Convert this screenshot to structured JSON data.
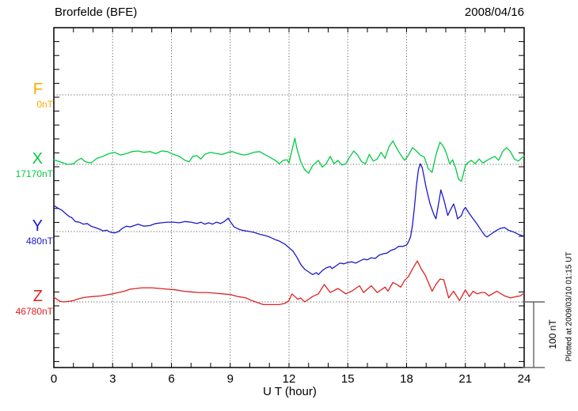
{
  "header": {
    "station": "Brorfelde (BFE)",
    "date": "2008/04/16"
  },
  "footer": {
    "plotted_at": "Plotted at 2009/03/10 01:15 UT"
  },
  "chart_data": {
    "type": "line",
    "title": "Brorfelde (BFE)",
    "date": "2008/04/16",
    "xlabel": "U T (hour)",
    "x_range": [
      0,
      24
    ],
    "x_major_ticks": [
      0,
      3,
      6,
      9,
      12,
      15,
      18,
      21,
      24
    ],
    "x_minor_step_hours": 1,
    "grid": "dotted vertical lines every 3 hours, dotted horizontal line at each component baseline",
    "legend_position": "left margin component labels",
    "scale": {
      "label": "100 nT",
      "nT": 100
    },
    "series": [
      {
        "name": "F",
        "baseline_nT": 0,
        "baseline_label": "0nT",
        "color": "#FFAA00",
        "points": []
      },
      {
        "name": "X",
        "baseline_nT": 17170,
        "baseline_label": "17170nT",
        "color": "#00CC44",
        "points": [
          [
            0,
            7
          ],
          [
            0.3,
            4
          ],
          [
            0.7,
            0
          ],
          [
            1,
            1
          ],
          [
            1.2,
            6
          ],
          [
            1.4,
            9
          ],
          [
            1.6,
            4
          ],
          [
            1.9,
            2
          ],
          [
            2.2,
            9
          ],
          [
            2.5,
            12
          ],
          [
            2.8,
            16
          ],
          [
            3.1,
            18
          ],
          [
            3.4,
            14
          ],
          [
            3.7,
            16
          ],
          [
            4,
            19
          ],
          [
            4.3,
            20
          ],
          [
            4.6,
            18
          ],
          [
            4.9,
            19
          ],
          [
            5.2,
            16
          ],
          [
            5.5,
            20
          ],
          [
            5.8,
            19
          ],
          [
            6.1,
            15
          ],
          [
            6.4,
            12
          ],
          [
            6.7,
            6
          ],
          [
            6.9,
            4
          ],
          [
            7.1,
            12
          ],
          [
            7.3,
            13
          ],
          [
            7.5,
            8
          ],
          [
            7.7,
            15
          ],
          [
            8,
            18
          ],
          [
            8.3,
            16
          ],
          [
            8.6,
            15
          ],
          [
            8.9,
            18
          ],
          [
            9.1,
            19
          ],
          [
            9.4,
            16
          ],
          [
            9.7,
            14
          ],
          [
            9.9,
            15
          ],
          [
            10.2,
            18
          ],
          [
            10.5,
            19
          ],
          [
            10.8,
            14
          ],
          [
            11,
            11
          ],
          [
            11.3,
            6
          ],
          [
            11.5,
            1
          ],
          [
            11.7,
            6
          ],
          [
            11.9,
            7
          ],
          [
            12,
            2
          ],
          [
            12.1,
            15
          ],
          [
            12.2,
            27
          ],
          [
            12.3,
            39
          ],
          [
            12.4,
            24
          ],
          [
            12.5,
            14
          ],
          [
            12.6,
            4
          ],
          [
            12.8,
            -8
          ],
          [
            13,
            -13
          ],
          [
            13.2,
            -2
          ],
          [
            13.5,
            6
          ],
          [
            13.7,
            -4
          ],
          [
            13.9,
            1
          ],
          [
            14.1,
            12
          ],
          [
            14.3,
            1
          ],
          [
            14.5,
            6
          ],
          [
            14.7,
            -1
          ],
          [
            14.9,
            1
          ],
          [
            15.1,
            11
          ],
          [
            15.3,
            20
          ],
          [
            15.5,
            14
          ],
          [
            15.7,
            4
          ],
          [
            15.9,
            1
          ],
          [
            16.1,
            15
          ],
          [
            16.3,
            5
          ],
          [
            16.5,
            8
          ],
          [
            16.7,
            18
          ],
          [
            16.9,
            9
          ],
          [
            17.1,
            26
          ],
          [
            17.3,
            35
          ],
          [
            17.5,
            24
          ],
          [
            17.7,
            14
          ],
          [
            17.9,
            6
          ],
          [
            18.1,
            14
          ],
          [
            18.3,
            25
          ],
          [
            18.5,
            20
          ],
          [
            18.7,
            14
          ],
          [
            18.9,
            11
          ],
          [
            19.1,
            -6
          ],
          [
            19.3,
            -12
          ],
          [
            19.5,
            14
          ],
          [
            19.7,
            33
          ],
          [
            19.85,
            28
          ],
          [
            20,
            19
          ],
          [
            20.2,
            1
          ],
          [
            20.35,
            7
          ],
          [
            20.5,
            -5
          ],
          [
            20.65,
            -22
          ],
          [
            20.8,
            -25
          ],
          [
            21,
            -2
          ],
          [
            21.1,
            2
          ],
          [
            21.3,
            6
          ],
          [
            21.5,
            1
          ],
          [
            21.7,
            8
          ],
          [
            21.9,
            2
          ],
          [
            22.1,
            6
          ],
          [
            22.3,
            9
          ],
          [
            22.5,
            12
          ],
          [
            22.7,
            6
          ],
          [
            22.9,
            19
          ],
          [
            23.1,
            25
          ],
          [
            23.3,
            19
          ],
          [
            23.5,
            8
          ],
          [
            23.7,
            5
          ],
          [
            23.85,
            9
          ],
          [
            24,
            12
          ]
        ]
      },
      {
        "name": "Y",
        "baseline_nT": 480,
        "baseline_label": "480nT",
        "color": "#1A1ACC",
        "points": [
          [
            0,
            39
          ],
          [
            0.2,
            35
          ],
          [
            0.4,
            32
          ],
          [
            0.6,
            27
          ],
          [
            0.8,
            22
          ],
          [
            0.9,
            21
          ],
          [
            1.1,
            15
          ],
          [
            1.3,
            14
          ],
          [
            1.5,
            11
          ],
          [
            1.7,
            12
          ],
          [
            1.9,
            8
          ],
          [
            2.1,
            6
          ],
          [
            2.3,
            4
          ],
          [
            2.5,
            1
          ],
          [
            2.7,
            2
          ],
          [
            2.9,
            -1
          ],
          [
            3.1,
            -2
          ],
          [
            3.3,
            0
          ],
          [
            3.5,
            5
          ],
          [
            3.7,
            8
          ],
          [
            3.9,
            7
          ],
          [
            4.1,
            9
          ],
          [
            4.3,
            11
          ],
          [
            4.6,
            8
          ],
          [
            4.9,
            9
          ],
          [
            5.2,
            12
          ],
          [
            5.5,
            13
          ],
          [
            5.8,
            14
          ],
          [
            6.1,
            14
          ],
          [
            6.4,
            13
          ],
          [
            6.7,
            15
          ],
          [
            7,
            14
          ],
          [
            7.3,
            12
          ],
          [
            7.5,
            14
          ],
          [
            7.7,
            11
          ],
          [
            7.9,
            13
          ],
          [
            8.1,
            11
          ],
          [
            8.3,
            14
          ],
          [
            8.5,
            12
          ],
          [
            8.7,
            15
          ],
          [
            8.9,
            20
          ],
          [
            9,
            15
          ],
          [
            9.2,
            7
          ],
          [
            9.4,
            4
          ],
          [
            9.6,
            2
          ],
          [
            9.8,
            1
          ],
          [
            10,
            0
          ],
          [
            10.2,
            -1
          ],
          [
            10.5,
            -4
          ],
          [
            10.8,
            -6
          ],
          [
            11,
            -8
          ],
          [
            11.3,
            -12
          ],
          [
            11.5,
            -14
          ],
          [
            11.8,
            -19
          ],
          [
            12,
            -24
          ],
          [
            12.2,
            -29
          ],
          [
            12.4,
            -38
          ],
          [
            12.6,
            -49
          ],
          [
            12.8,
            -56
          ],
          [
            13,
            -60
          ],
          [
            13.2,
            -64
          ],
          [
            13.4,
            -61
          ],
          [
            13.5,
            -64
          ],
          [
            13.7,
            -58
          ],
          [
            13.9,
            -54
          ],
          [
            14.1,
            -52
          ],
          [
            14.2,
            -55
          ],
          [
            14.4,
            -51
          ],
          [
            14.6,
            -47
          ],
          [
            14.8,
            -48
          ],
          [
            15,
            -46
          ],
          [
            15.2,
            -45
          ],
          [
            15.4,
            -47
          ],
          [
            15.6,
            -44
          ],
          [
            15.8,
            -41
          ],
          [
            16,
            -42
          ],
          [
            16.2,
            -39
          ],
          [
            16.4,
            -40
          ],
          [
            16.6,
            -35
          ],
          [
            16.8,
            -33
          ],
          [
            17,
            -32
          ],
          [
            17.2,
            -28
          ],
          [
            17.4,
            -26
          ],
          [
            17.6,
            -22
          ],
          [
            17.8,
            -22
          ],
          [
            18,
            -20
          ],
          [
            18.1,
            -15
          ],
          [
            18.2,
            -8
          ],
          [
            18.3,
            9
          ],
          [
            18.4,
            36
          ],
          [
            18.5,
            68
          ],
          [
            18.6,
            92
          ],
          [
            18.7,
            101
          ],
          [
            18.8,
            95
          ],
          [
            18.9,
            80
          ],
          [
            19,
            65
          ],
          [
            19.2,
            41
          ],
          [
            19.4,
            25
          ],
          [
            19.5,
            19
          ],
          [
            19.6,
            36
          ],
          [
            19.75,
            62
          ],
          [
            19.9,
            48
          ],
          [
            20.1,
            24
          ],
          [
            20.25,
            33
          ],
          [
            20.4,
            41
          ],
          [
            20.5,
            32
          ],
          [
            20.6,
            19
          ],
          [
            20.8,
            24
          ],
          [
            20.9,
            32
          ],
          [
            21,
            36
          ],
          [
            21.2,
            27
          ],
          [
            21.4,
            19
          ],
          [
            21.6,
            11
          ],
          [
            21.8,
            2
          ],
          [
            22,
            -6
          ],
          [
            22.1,
            -8
          ],
          [
            22.3,
            -4
          ],
          [
            22.5,
            0
          ],
          [
            22.6,
            2
          ],
          [
            22.8,
            5
          ],
          [
            23,
            6
          ],
          [
            23.2,
            2
          ],
          [
            23.4,
            0
          ],
          [
            23.5,
            -1
          ],
          [
            23.7,
            -4
          ],
          [
            23.9,
            -6
          ],
          [
            24,
            -7
          ]
        ]
      },
      {
        "name": "Z",
        "baseline_nT": 46780,
        "baseline_label": "46780nT",
        "color": "#DD2222",
        "points": [
          [
            0,
            7
          ],
          [
            0.15,
            4
          ],
          [
            0.3,
            1
          ],
          [
            0.5,
            0
          ],
          [
            0.8,
            1
          ],
          [
            1,
            2
          ],
          [
            1.3,
            5
          ],
          [
            1.6,
            7
          ],
          [
            2,
            8
          ],
          [
            2.4,
            9
          ],
          [
            2.8,
            11
          ],
          [
            3,
            12
          ],
          [
            3.3,
            14
          ],
          [
            3.6,
            16
          ],
          [
            3.9,
            19
          ],
          [
            4.2,
            20
          ],
          [
            4.5,
            21
          ],
          [
            5,
            21
          ],
          [
            5.4,
            20
          ],
          [
            5.8,
            19
          ],
          [
            6.2,
            18
          ],
          [
            6.6,
            16
          ],
          [
            7,
            15
          ],
          [
            7.4,
            14
          ],
          [
            7.8,
            14
          ],
          [
            8.2,
            13
          ],
          [
            8.6,
            12
          ],
          [
            9,
            11
          ],
          [
            9.4,
            8
          ],
          [
            9.8,
            6
          ],
          [
            10.1,
            2
          ],
          [
            10.4,
            -1
          ],
          [
            10.7,
            -4
          ],
          [
            11.1,
            -4
          ],
          [
            11.5,
            -4
          ],
          [
            11.8,
            -2
          ],
          [
            12,
            2
          ],
          [
            12.15,
            12
          ],
          [
            12.3,
            8
          ],
          [
            12.45,
            4
          ],
          [
            12.6,
            6
          ],
          [
            12.8,
            0
          ],
          [
            13,
            4
          ],
          [
            13.2,
            8
          ],
          [
            13.5,
            12
          ],
          [
            13.8,
            26
          ],
          [
            14.1,
            14
          ],
          [
            14.5,
            20
          ],
          [
            14.9,
            12
          ],
          [
            15.2,
            16
          ],
          [
            15.6,
            24
          ],
          [
            15.8,
            14
          ],
          [
            16.2,
            24
          ],
          [
            16.5,
            14
          ],
          [
            16.9,
            22
          ],
          [
            17.05,
            16
          ],
          [
            17.3,
            29
          ],
          [
            17.5,
            26
          ],
          [
            17.7,
            22
          ],
          [
            17.9,
            32
          ],
          [
            18.1,
            38
          ],
          [
            18.3,
            49
          ],
          [
            18.55,
            61
          ],
          [
            18.75,
            49
          ],
          [
            18.95,
            40
          ],
          [
            19.3,
            16
          ],
          [
            19.5,
            26
          ],
          [
            19.7,
            34
          ],
          [
            19.9,
            33
          ],
          [
            20.15,
            6
          ],
          [
            20.4,
            16
          ],
          [
            20.7,
            2
          ],
          [
            21,
            18
          ],
          [
            21.2,
            8
          ],
          [
            21.4,
            16
          ],
          [
            21.6,
            12
          ],
          [
            21.8,
            14
          ],
          [
            22,
            14
          ],
          [
            22.2,
            9
          ],
          [
            22.6,
            16
          ],
          [
            23,
            9
          ],
          [
            23.3,
            6
          ],
          [
            23.6,
            8
          ],
          [
            23.8,
            9
          ],
          [
            24,
            13
          ]
        ]
      }
    ]
  }
}
